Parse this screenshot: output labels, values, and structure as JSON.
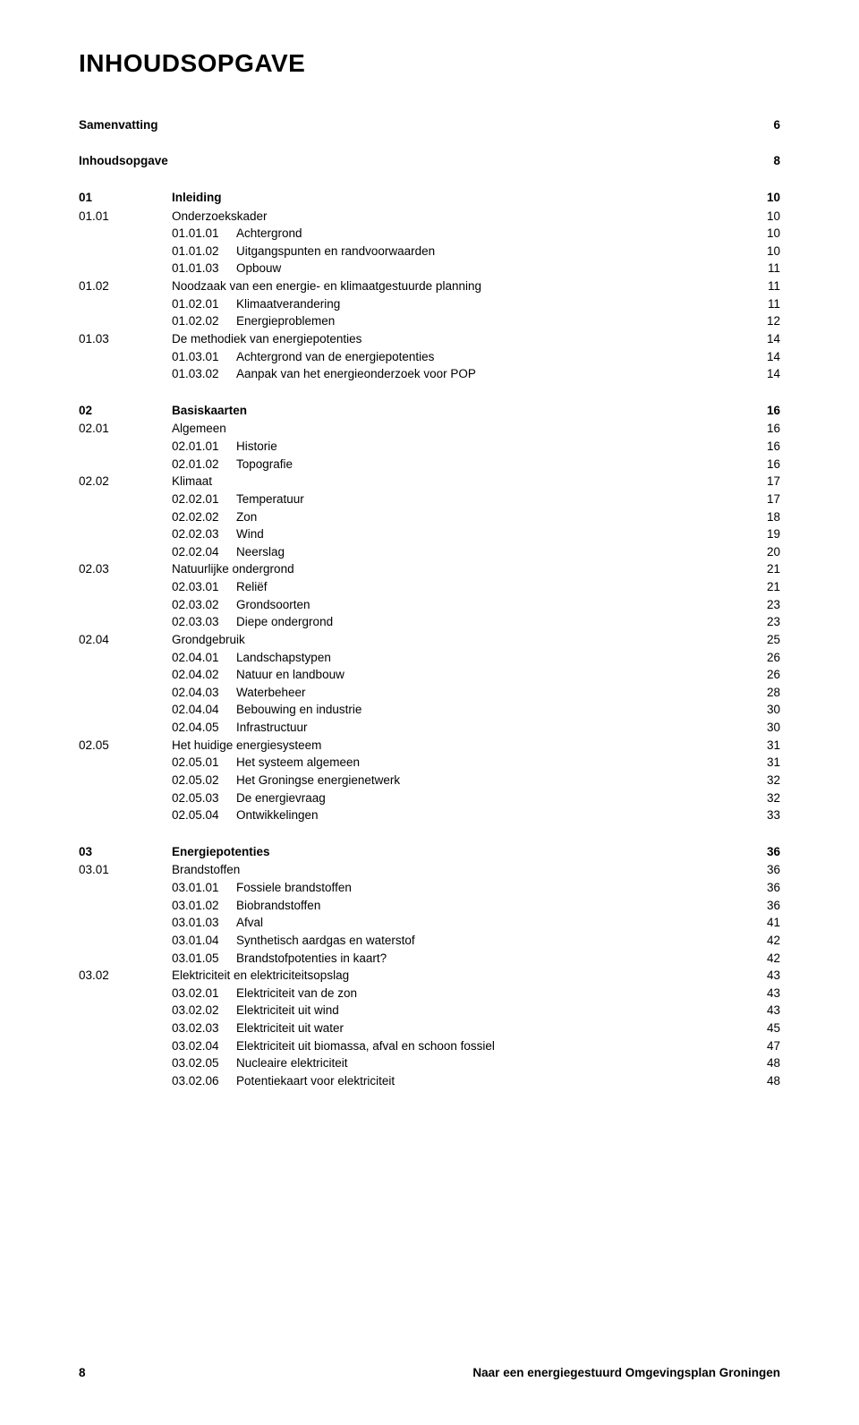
{
  "title": "INHOUDSOPGAVE",
  "title_fontsize": 28,
  "body_fontsize": 13.5,
  "line_height": 1.38,
  "summary": {
    "label": "Samenvatting",
    "page": "6"
  },
  "toc_self": {
    "label": "Inhoudsopgave",
    "page": "8"
  },
  "chapters": [
    {
      "num": "01",
      "title": "Inleiding",
      "page": "10",
      "entries": [
        {
          "num": "01.01",
          "title": "Onderzoekskader",
          "page": "10",
          "sub": false
        },
        {
          "num": "01.01.01",
          "title": "Achtergrond",
          "page": "10",
          "sub": true
        },
        {
          "num": "01.01.02",
          "title": "Uitgangspunten en randvoorwaarden",
          "page": "10",
          "sub": true
        },
        {
          "num": "01.01.03",
          "title": "Opbouw",
          "page": "11",
          "sub": true
        },
        {
          "num": "01.02",
          "title": "Noodzaak van een energie- en klimaatgestuurde planning",
          "page": "11",
          "sub": false
        },
        {
          "num": "01.02.01",
          "title": "Klimaatverandering",
          "page": "11",
          "sub": true
        },
        {
          "num": "01.02.02",
          "title": "Energieproblemen",
          "page": "12",
          "sub": true
        },
        {
          "num": "01.03",
          "title": "De methodiek van energiepotenties",
          "page": "14",
          "sub": false
        },
        {
          "num": "01.03.01",
          "title": "Achtergrond van de energiepotenties",
          "page": "14",
          "sub": true
        },
        {
          "num": "01.03.02",
          "title": "Aanpak van het energieonderzoek voor POP",
          "page": "14",
          "sub": true
        }
      ]
    },
    {
      "num": "02",
      "title": "Basiskaarten",
      "page": "16",
      "entries": [
        {
          "num": "02.01",
          "title": "Algemeen",
          "page": "16",
          "sub": false
        },
        {
          "num": "02.01.01",
          "title": "Historie",
          "page": "16",
          "sub": true
        },
        {
          "num": "02.01.02",
          "title": "Topografie",
          "page": "16",
          "sub": true
        },
        {
          "num": "02.02",
          "title": "Klimaat",
          "page": "17",
          "sub": false
        },
        {
          "num": "02.02.01",
          "title": "Temperatuur",
          "page": "17",
          "sub": true
        },
        {
          "num": "02.02.02",
          "title": "Zon",
          "page": "18",
          "sub": true
        },
        {
          "num": "02.02.03",
          "title": "Wind",
          "page": "19",
          "sub": true
        },
        {
          "num": "02.02.04",
          "title": "Neerslag",
          "page": "20",
          "sub": true
        },
        {
          "num": "02.03",
          "title": "Natuurlijke ondergrond",
          "page": "21",
          "sub": false
        },
        {
          "num": "02.03.01",
          "title": "Reliëf",
          "page": "21",
          "sub": true
        },
        {
          "num": "02.03.02",
          "title": "Grondsoorten",
          "page": "23",
          "sub": true
        },
        {
          "num": "02.03.03",
          "title": "Diepe ondergrond",
          "page": "23",
          "sub": true
        },
        {
          "num": "02.04",
          "title": "Grondgebruik",
          "page": "25",
          "sub": false
        },
        {
          "num": "02.04.01",
          "title": "Landschapstypen",
          "page": "26",
          "sub": true
        },
        {
          "num": "02.04.02",
          "title": "Natuur en landbouw",
          "page": "26",
          "sub": true
        },
        {
          "num": "02.04.03",
          "title": "Waterbeheer",
          "page": "28",
          "sub": true
        },
        {
          "num": "02.04.04",
          "title": "Bebouwing en industrie",
          "page": "30",
          "sub": true
        },
        {
          "num": "02.04.05",
          "title": "Infrastructuur",
          "page": "30",
          "sub": true
        },
        {
          "num": "02.05",
          "title": "Het huidige energiesysteem",
          "page": "31",
          "sub": false
        },
        {
          "num": "02.05.01",
          "title": "Het systeem algemeen",
          "page": "31",
          "sub": true
        },
        {
          "num": "02.05.02",
          "title": "Het Groningse energienetwerk",
          "page": "32",
          "sub": true
        },
        {
          "num": "02.05.03",
          "title": "De energievraag",
          "page": "32",
          "sub": true
        },
        {
          "num": "02.05.04",
          "title": "Ontwikkelingen",
          "page": "33",
          "sub": true
        }
      ]
    },
    {
      "num": "03",
      "title": "Energiepotenties",
      "page": "36",
      "entries": [
        {
          "num": "03.01",
          "title": "Brandstoffen",
          "page": "36",
          "sub": false
        },
        {
          "num": "03.01.01",
          "title": "Fossiele brandstoffen",
          "page": "36",
          "sub": true
        },
        {
          "num": "03.01.02",
          "title": "Biobrandstoffen",
          "page": "36",
          "sub": true
        },
        {
          "num": "03.01.03",
          "title": "Afval",
          "page": "41",
          "sub": true
        },
        {
          "num": "03.01.04",
          "title": "Synthetisch aardgas en waterstof",
          "page": "42",
          "sub": true
        },
        {
          "num": "03.01.05",
          "title": "Brandstofpotenties in kaart?",
          "page": "42",
          "sub": true
        },
        {
          "num": "03.02",
          "title": "Elektriciteit en elektriciteitsopslag",
          "page": "43",
          "sub": false
        },
        {
          "num": "03.02.01",
          "title": "Elektriciteit van de zon",
          "page": "43",
          "sub": true
        },
        {
          "num": "03.02.02",
          "title": "Elektriciteit uit wind",
          "page": "43",
          "sub": true
        },
        {
          "num": "03.02.03",
          "title": "Elektriciteit uit water",
          "page": "45",
          "sub": true
        },
        {
          "num": "03.02.04",
          "title": "Elektriciteit uit biomassa, afval en schoon fossiel",
          "page": "47",
          "sub": true
        },
        {
          "num": "03.02.05",
          "title": "Nucleaire elektriciteit",
          "page": "48",
          "sub": true
        },
        {
          "num": "03.02.06",
          "title": "Potentiekaart voor elektriciteit",
          "page": "48",
          "sub": true
        }
      ]
    }
  ],
  "footer": {
    "page_number": "8",
    "doc_title": "Naar een energiegestuurd Omgevingsplan Groningen"
  },
  "colors": {
    "text": "#000000",
    "background": "#ffffff"
  }
}
